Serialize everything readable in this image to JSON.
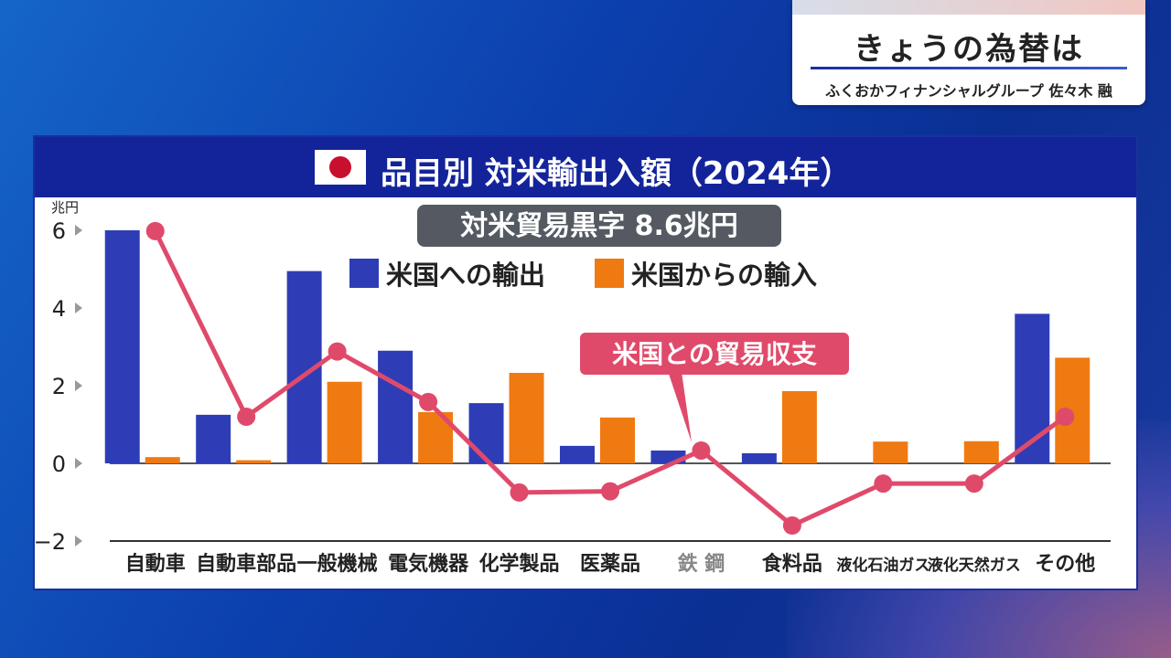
{
  "caption": {
    "title": "きょうの為替は",
    "subtitle": "ふくおかフィナンシャルグループ 佐々木 融"
  },
  "chart_header": {
    "title": "品目別 対米輸出入額（2024年）"
  },
  "chart_data": {
    "type": "bar",
    "title": "品目別 対米輸出入額（2024年）",
    "ylabel": "兆円",
    "ylim": [
      -2,
      6
    ],
    "yticks": [
      "6",
      "4",
      "2",
      "0",
      "−2"
    ],
    "categories": [
      "自動車",
      "自動車部品",
      "一般機械",
      "電気機器",
      "化学製品",
      "医薬品",
      "鉄 鋼",
      "食料品",
      "液化石油ガス",
      "液化天然ガス",
      "その他"
    ],
    "series": [
      {
        "name": "米国への輸出",
        "color": "#2e3db6",
        "values": [
          6.0,
          1.25,
          4.95,
          2.9,
          1.55,
          0.45,
          0.33,
          0.26,
          0.0,
          0.0,
          3.85
        ]
      },
      {
        "name": "米国からの輸入",
        "color": "#ef7a12",
        "values": [
          0.16,
          0.08,
          2.1,
          1.32,
          2.33,
          1.18,
          0.0,
          1.86,
          0.56,
          0.57,
          2.72
        ]
      }
    ],
    "balance_line": {
      "name": "米国との貿易収支",
      "color": "#e04a6a",
      "values": [
        5.98,
        1.2,
        2.88,
        1.58,
        -0.75,
        -0.72,
        0.33,
        -1.6,
        -0.52,
        -0.52,
        1.2
      ]
    },
    "annotation": "対米貿易黒字 8.6兆円",
    "legend_position": "top-center"
  }
}
